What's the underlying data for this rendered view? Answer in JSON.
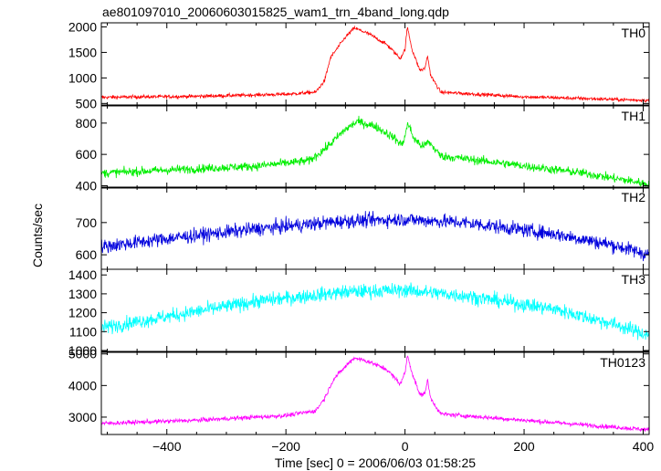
{
  "title": "ae801097010_20060603015825_wam1_trn_4band_long.qdp",
  "ylabel": "Counts/sec",
  "xlabel": "Time [sec] 0 = 2006/06/03 01:58:25",
  "chart_data": {
    "type": "line",
    "x_range": [
      -510,
      410
    ],
    "x_ticks": [
      -400,
      -200,
      0,
      200,
      400
    ],
    "panels": [
      {
        "name": "TH0",
        "color": "#ff0000",
        "ylim": [
          470,
          2080
        ],
        "yticks": [
          500,
          1000,
          1500,
          2000
        ],
        "profile": [
          [
            -510,
            620
          ],
          [
            -350,
            640
          ],
          [
            -200,
            680
          ],
          [
            -150,
            720
          ],
          [
            -135,
            950
          ],
          [
            -125,
            1400
          ],
          [
            -100,
            1800
          ],
          [
            -85,
            1980
          ],
          [
            -60,
            1860
          ],
          [
            -30,
            1650
          ],
          [
            -8,
            1380
          ],
          [
            0,
            1560
          ],
          [
            4,
            2000
          ],
          [
            12,
            1550
          ],
          [
            25,
            1150
          ],
          [
            33,
            1180
          ],
          [
            38,
            1430
          ],
          [
            43,
            1050
          ],
          [
            60,
            720
          ],
          [
            200,
            630
          ],
          [
            410,
            560
          ]
        ],
        "noise": 35
      },
      {
        "name": "TH1",
        "color": "#00ee00",
        "ylim": [
          385,
          910
        ],
        "yticks": [
          400,
          600,
          800
        ],
        "profile": [
          [
            -510,
            480
          ],
          [
            -400,
            500
          ],
          [
            -250,
            525
          ],
          [
            -160,
            560
          ],
          [
            -130,
            650
          ],
          [
            -100,
            760
          ],
          [
            -80,
            810
          ],
          [
            -50,
            780
          ],
          [
            -20,
            710
          ],
          [
            -5,
            660
          ],
          [
            0,
            720
          ],
          [
            5,
            800
          ],
          [
            15,
            700
          ],
          [
            30,
            650
          ],
          [
            40,
            680
          ],
          [
            60,
            590
          ],
          [
            150,
            550
          ],
          [
            300,
            480
          ],
          [
            410,
            410
          ]
        ],
        "noise": 28
      },
      {
        "name": "TH2",
        "color": "#0000dd",
        "ylim": [
          555,
          810
        ],
        "yticks": [
          600,
          700
        ],
        "profile": [
          [
            -510,
            625
          ],
          [
            -400,
            650
          ],
          [
            -250,
            680
          ],
          [
            -100,
            705
          ],
          [
            0,
            710
          ],
          [
            100,
            700
          ],
          [
            250,
            665
          ],
          [
            350,
            630
          ],
          [
            410,
            600
          ]
        ],
        "noise": 22
      },
      {
        "name": "TH3",
        "color": "#00ffff",
        "ylim": [
          995,
          1430
        ],
        "yticks": [
          1000,
          1100,
          1200,
          1300,
          1400
        ],
        "profile": [
          [
            -510,
            1120
          ],
          [
            -400,
            1180
          ],
          [
            -250,
            1260
          ],
          [
            -100,
            1310
          ],
          [
            0,
            1320
          ],
          [
            100,
            1290
          ],
          [
            250,
            1220
          ],
          [
            350,
            1140
          ],
          [
            410,
            1080
          ]
        ],
        "noise": 38
      },
      {
        "name": "TH0123",
        "color": "#ff00ff",
        "ylim": [
          2450,
          5050
        ],
        "yticks": [
          3000,
          4000,
          5000
        ],
        "profile": [
          [
            -510,
            2800
          ],
          [
            -350,
            2900
          ],
          [
            -200,
            3050
          ],
          [
            -150,
            3200
          ],
          [
            -135,
            3600
          ],
          [
            -120,
            4200
          ],
          [
            -95,
            4700
          ],
          [
            -85,
            4880
          ],
          [
            -60,
            4750
          ],
          [
            -30,
            4500
          ],
          [
            -8,
            4050
          ],
          [
            0,
            4400
          ],
          [
            4,
            4950
          ],
          [
            12,
            4400
          ],
          [
            25,
            3700
          ],
          [
            33,
            3750
          ],
          [
            38,
            4150
          ],
          [
            43,
            3600
          ],
          [
            60,
            3100
          ],
          [
            200,
            2900
          ],
          [
            410,
            2600
          ]
        ],
        "noise": 70
      }
    ]
  }
}
